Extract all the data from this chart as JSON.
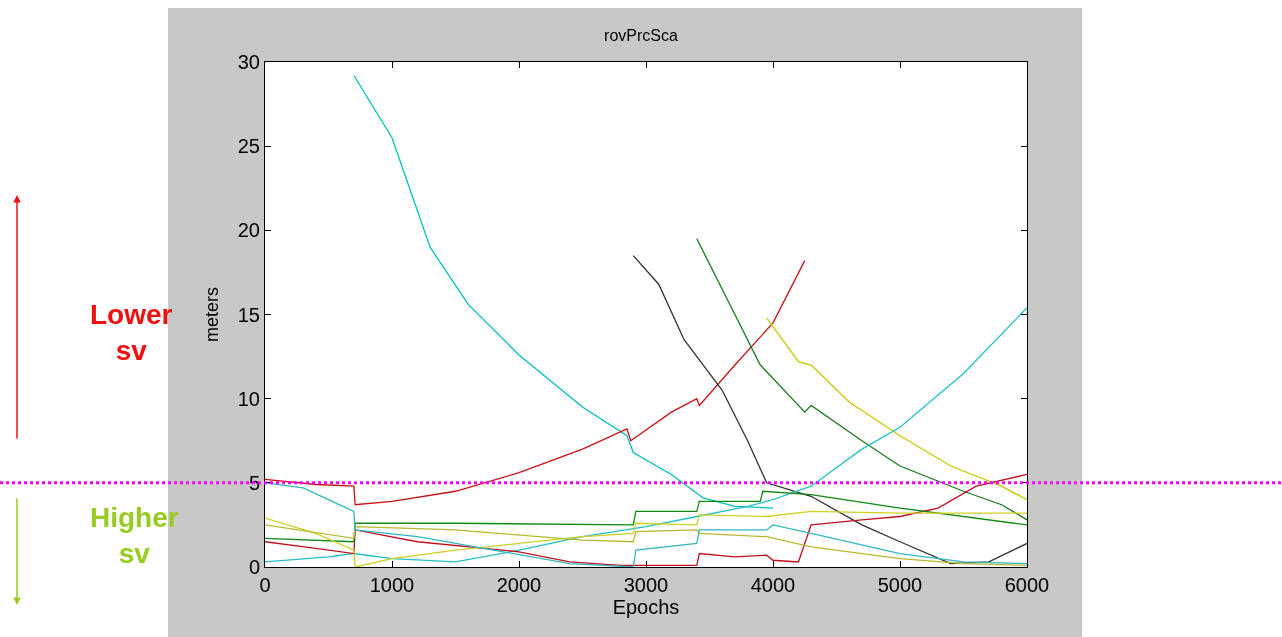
{
  "chart_data": {
    "type": "line",
    "title": "rovPrcSca",
    "xlabel": "Epochs",
    "ylabel": "meters",
    "xlim": [
      0,
      6000
    ],
    "xticks": [
      0,
      1000,
      2000,
      3000,
      4000,
      5000,
      6000
    ],
    "ylim": [
      0,
      30
    ],
    "yticks": [
      0,
      5,
      10,
      15,
      20,
      25,
      30
    ],
    "grid": false,
    "marker": "none",
    "line_style": "solid",
    "series": [
      {
        "color": "#00bfbf",
        "x": [
          700,
          1000,
          1300,
          1600,
          2000,
          2500,
          2850,
          2900,
          3200,
          3450,
          3700,
          4000
        ],
        "values": [
          29.2,
          25.5,
          19,
          15.6,
          12.6,
          9.5,
          7.8,
          6.8,
          5.5,
          4.1,
          3.6,
          3.5
        ]
      },
      {
        "color": "#cc1010",
        "x": [
          0,
          400,
          700,
          710,
          1000,
          1500,
          2000,
          2500,
          2850,
          2880,
          3200,
          3400,
          3420,
          3700,
          4000,
          4250
        ],
        "values": [
          5.2,
          4.9,
          4.8,
          3.7,
          3.9,
          4.5,
          5.6,
          7,
          8.2,
          7.5,
          9.2,
          10,
          9.6,
          12,
          14.5,
          18.2
        ]
      },
      {
        "color": "#303030",
        "x": [
          2900,
          3100,
          3300,
          3600,
          3800,
          3950,
          4300,
          4700,
          5000,
          5400,
          5700,
          6000
        ],
        "values": [
          18.5,
          16.8,
          13.5,
          10.5,
          7.5,
          5,
          4.2,
          2.5,
          1.5,
          0.2,
          0.3,
          1.4
        ]
      },
      {
        "color": "#1a7a1a",
        "x": [
          3400,
          3600,
          3900,
          4250,
          4300,
          4700,
          5000,
          5500,
          5800,
          6000
        ],
        "values": [
          19.5,
          16.5,
          12,
          9.2,
          9.6,
          7.5,
          6,
          4.5,
          3.7,
          2.8
        ]
      },
      {
        "color": "#c8c800",
        "x": [
          3950,
          4200,
          4300,
          4600,
          5000,
          5400,
          5800,
          6000
        ],
        "values": [
          14.8,
          12.2,
          12,
          9.8,
          7.8,
          6,
          4.8,
          4
        ]
      },
      {
        "color": "#20c0c8",
        "x": [
          0,
          500,
          700,
          1000,
          1500,
          2000,
          2500,
          3000,
          3400,
          3800,
          4000,
          4300,
          4700,
          5000,
          5500,
          6000
        ],
        "values": [
          0.3,
          0.6,
          0.8,
          0.5,
          0.3,
          1.0,
          1.8,
          2.4,
          3,
          3.6,
          4,
          4.8,
          7,
          8.3,
          11.5,
          15.4
        ]
      },
      {
        "color": "#c01020",
        "x": [
          0,
          400,
          700,
          710,
          1200,
          2000,
          2400,
          2800,
          3400,
          3420,
          3700,
          3950,
          4000,
          4200,
          4300,
          4700,
          5000,
          5300,
          5600,
          6000
        ],
        "values": [
          1.5,
          1.1,
          0.8,
          2.2,
          1.5,
          0.9,
          0.3,
          0.1,
          0.1,
          0.8,
          0.6,
          0.7,
          0.4,
          0.3,
          2.5,
          2.8,
          3.0,
          3.5,
          4.8,
          5.5
        ]
      },
      {
        "color": "#108a10",
        "x": [
          0,
          700,
          710,
          1500,
          2900,
          2920,
          3400,
          3420,
          3900,
          3920,
          4300,
          5000,
          6000
        ],
        "values": [
          1.7,
          1.5,
          2.6,
          2.6,
          2.5,
          3.3,
          3.3,
          3.9,
          3.9,
          4.5,
          4.3,
          3.5,
          2.5
        ]
      },
      {
        "color": "#d0d020",
        "x": [
          0,
          400,
          700,
          710,
          1000,
          1500,
          2000,
          2500,
          2900,
          2920,
          3400,
          3420,
          3950,
          4300,
          5000,
          6000
        ],
        "values": [
          2.9,
          2.0,
          1.0,
          0,
          0.5,
          1,
          1.4,
          1.8,
          2.0,
          2.6,
          2.5,
          3.1,
          3.0,
          3.3,
          3.2,
          3.2
        ]
      },
      {
        "color": "#b8b830",
        "x": [
          0,
          700,
          710,
          1500,
          2500,
          2900,
          2920,
          3400,
          3420,
          3950,
          4300,
          5000,
          5500,
          6000
        ],
        "values": [
          2.5,
          1.7,
          2.4,
          2.2,
          1.6,
          1.5,
          2.1,
          2.2,
          2.0,
          1.8,
          1.2,
          0.5,
          0.2,
          0.1
        ]
      },
      {
        "color": "#30b8c0",
        "x": [
          0,
          300,
          500,
          700,
          710,
          1200,
          1800,
          2400,
          2900,
          2920,
          3400,
          3420,
          3950,
          4000,
          4300,
          5000,
          5500,
          6000
        ],
        "values": [
          5,
          4.7,
          4.0,
          3.3,
          2.2,
          1.8,
          1.0,
          0.2,
          0,
          1.0,
          1.4,
          2.2,
          2.2,
          2.5,
          2.0,
          0.8,
          0.3,
          0.2
        ]
      }
    ],
    "ref_lines": [
      {
        "axis": "y",
        "value": 5,
        "color": "#ff00ff",
        "line_style": "dotted"
      }
    ],
    "annotations": [
      "Lower\nsv",
      "Higher\nsv"
    ]
  }
}
